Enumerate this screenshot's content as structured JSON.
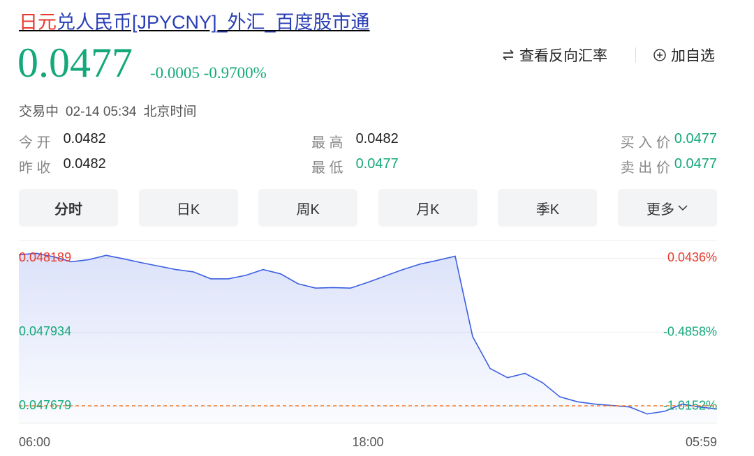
{
  "header": {
    "title_parts": [
      {
        "text": "日元",
        "color": "#e8392c"
      },
      {
        "text": "兑人民币[JPYCNY]_外汇_百度股市通",
        "color": "#2a3fb5"
      }
    ]
  },
  "quote": {
    "price": "0.0477",
    "change": "-0.0005",
    "change_pct": "-0.9700%",
    "color": "#14a87a"
  },
  "actions": {
    "reverse": "查看反向汇率",
    "add": "加自选"
  },
  "status": {
    "state": "交易中",
    "time": "02-14 05:34",
    "zone": "北京时间"
  },
  "stats": [
    [
      {
        "label": "今 开",
        "value": "0.0482",
        "color": "#222222"
      },
      {
        "label": "最 高",
        "value": "0.0482",
        "color": "#222222"
      },
      {
        "label": "买 入 价",
        "value": "0.0477",
        "color": "#14a87a"
      }
    ],
    [
      {
        "label": "昨 收",
        "value": "0.0482",
        "color": "#222222"
      },
      {
        "label": "最 低",
        "value": "0.0477",
        "color": "#14a87a"
      },
      {
        "label": "卖 出 价",
        "value": "0.0477",
        "color": "#14a87a"
      }
    ]
  ],
  "tabs": [
    "分时",
    "日K",
    "周K",
    "月K",
    "季K",
    "更多"
  ],
  "chart_data": {
    "type": "line",
    "x_labels": [
      "06:00",
      "18:00",
      "05:59"
    ],
    "ylim": [
      0.04762,
      0.04825
    ],
    "yticks": [
      0.048189,
      0.047934,
      0.047679
    ],
    "y2lim": [
      -1.1374,
      0.1709
    ],
    "y2ticks": [
      {
        "value": 0.0436,
        "label": "0.0436%"
      },
      {
        "value": -0.4858,
        "label": "-0.4858%"
      },
      {
        "value": -1.0152,
        "label": "-1.0152%"
      }
    ],
    "up_color": "#e8392c",
    "down_color": "#14a87a",
    "reference_value": 0.04768,
    "reference_color": "#f07a2a",
    "series": [
      {
        "color": "#3b5fe0",
        "values": [
          0.048201,
          0.048206,
          0.048194,
          0.048177,
          0.048184,
          0.048199,
          0.048187,
          0.048174,
          0.048162,
          0.04815,
          0.048142,
          0.048118,
          0.048118,
          0.04813,
          0.04815,
          0.048135,
          0.048101,
          0.048086,
          0.048088,
          0.048086,
          0.048106,
          0.048128,
          0.04815,
          0.048169,
          0.048182,
          0.048196,
          0.047919,
          0.047809,
          0.047777,
          0.047792,
          0.04776,
          0.047711,
          0.047694,
          0.047686,
          0.047681,
          0.047676,
          0.047652,
          0.047661,
          0.047686,
          0.047676,
          0.047669
        ]
      }
    ]
  }
}
